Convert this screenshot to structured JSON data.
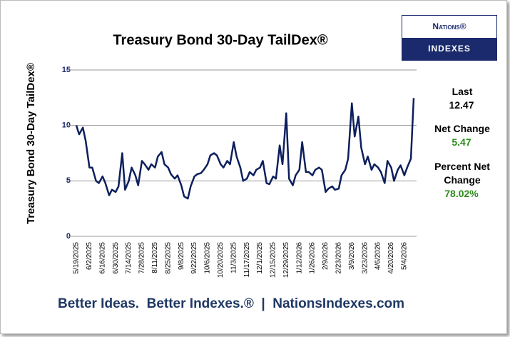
{
  "chart_data": {
    "type": "line",
    "title": "Treasury Bond 30-Day TailDex®",
    "ylabel": "Treasury Bond 30-Day TailDex®",
    "x": [
      "5/19/2025",
      "5/22/2025",
      "5/26/2025",
      "5/29/2025",
      "6/2/2025",
      "6/5/2025",
      "6/9/2025",
      "6/12/2025",
      "6/16/2025",
      "6/19/2025",
      "6/23/2025",
      "6/26/2025",
      "6/30/2025",
      "7/3/2025",
      "7/7/2025",
      "7/10/2025",
      "7/14/2025",
      "7/17/2025",
      "7/21/2025",
      "7/24/2025",
      "7/28/2025",
      "7/31/2025",
      "8/4/2025",
      "8/7/2025",
      "8/11/2025",
      "8/14/2025",
      "8/18/2025",
      "8/21/2025",
      "8/25/2025",
      "8/28/2025",
      "9/1/2025",
      "9/4/2025",
      "9/8/2025",
      "9/11/2025",
      "9/15/2025",
      "9/18/2025",
      "9/22/2025",
      "9/25/2025",
      "9/29/2025",
      "10/2/2025",
      "10/6/2025",
      "10/9/2025",
      "10/13/2025",
      "10/16/2025",
      "10/20/2025",
      "10/23/2025",
      "10/27/2025",
      "10/30/2025",
      "11/3/2025",
      "11/6/2025",
      "11/10/2025",
      "11/13/2025",
      "11/17/2025",
      "11/20/2025",
      "11/24/2025",
      "11/27/2025",
      "12/1/2025",
      "12/4/2025",
      "12/8/2025",
      "12/11/2025",
      "12/15/2025",
      "12/18/2025",
      "12/22/2025",
      "12/25/2025",
      "12/29/2025",
      "1/1/2026",
      "1/5/2026",
      "1/8/2026",
      "1/12/2026",
      "1/15/2026",
      "1/19/2026",
      "1/22/2026",
      "1/26/2026",
      "1/29/2026",
      "2/2/2026",
      "2/5/2026",
      "2/9/2026",
      "2/12/2026",
      "2/16/2026",
      "2/19/2026",
      "2/23/2026",
      "2/26/2026",
      "3/2/2026",
      "3/5/2026",
      "3/9/2026",
      "3/12/2026",
      "3/16/2026",
      "3/19/2026",
      "3/23/2026",
      "3/26/2026",
      "3/30/2026",
      "4/2/2026",
      "4/6/2026",
      "4/9/2026",
      "4/13/2026",
      "4/16/2026",
      "4/20/2026",
      "4/23/2026",
      "4/27/2026",
      "4/30/2026",
      "5/4/2026",
      "5/7/2026",
      "5/11/2026",
      "5/14/2026"
    ],
    "series": [
      {
        "name": "Treasury Bond 30-Day TailDex",
        "color": "#0d1f5c",
        "values": [
          10,
          9.2,
          9.8,
          8.6,
          6.2,
          6.2,
          5.0,
          4.8,
          5.4,
          4.8,
          3.7,
          4.2,
          4.0,
          4.5,
          7.5,
          4.2,
          5.0,
          6.2,
          5.5,
          4.6,
          6.8,
          6.5,
          6.0,
          6.5,
          6.2,
          7.2,
          7.6,
          6.5,
          6.2,
          5.6,
          5.2,
          5.5,
          4.6,
          3.6,
          3.4,
          4.5,
          5.4,
          5.6,
          5.7,
          6.0,
          6.5,
          7.3,
          7.5,
          7.3,
          6.5,
          6.2,
          6.8,
          6.5,
          8.5,
          7.2,
          6.2,
          5.0,
          5.2,
          5.8,
          5.5,
          6.0,
          6.2,
          6.8,
          4.8,
          4.7,
          5.4,
          5.2,
          8.2,
          6.5,
          11.1,
          5.2,
          4.6,
          5.5,
          6.0,
          8.5,
          5.8,
          5.8,
          5.5,
          6.0,
          6.2,
          6.0,
          4.0,
          4.3,
          4.5,
          4.2,
          4.3,
          5.5,
          6.0,
          7.0,
          12.0,
          9.0,
          10.8,
          8.0,
          6.5,
          7.2,
          6.0,
          6.5,
          6.2,
          5.8,
          4.8,
          6.8,
          6.2,
          5.0,
          6.0,
          6.4,
          5.5,
          6.2,
          7.0,
          12.47
        ]
      }
    ],
    "xlim": [
      "5/19/2025",
      "5/14/2026"
    ],
    "xticks": [
      "5/19/2025",
      "6/2/2025",
      "6/16/2025",
      "6/30/2025",
      "7/14/2025",
      "7/28/2025",
      "8/11/2025",
      "8/25/2025",
      "9/8/2025",
      "9/22/2025",
      "10/6/2025",
      "10/20/2025",
      "11/3/2025",
      "11/17/2025",
      "12/1/2025",
      "12/15/2025",
      "12/29/2025",
      "1/12/2026",
      "1/26/2026",
      "2/9/2026",
      "2/23/2026",
      "3/9/2026",
      "3/23/2026",
      "4/6/2026",
      "4/20/2026",
      "5/4/2026"
    ],
    "ylim": [
      0,
      15
    ],
    "yticks": [
      0,
      5,
      10,
      15
    ],
    "grid": true
  },
  "stats": [
    {
      "label": "Last",
      "value": "12.47",
      "color": "#000000"
    },
    {
      "label": "Net Change",
      "value": "5.47",
      "color": "#2e8b1e"
    },
    {
      "label": "Percent Net Change",
      "value": "78.02%",
      "color": "#2e8b1e"
    }
  ],
  "logo": {
    "top": "Nations®",
    "bottom": "Indexes"
  },
  "footer": "Better Ideas.  Better Indexes.®  |  NationsIndexes.com"
}
